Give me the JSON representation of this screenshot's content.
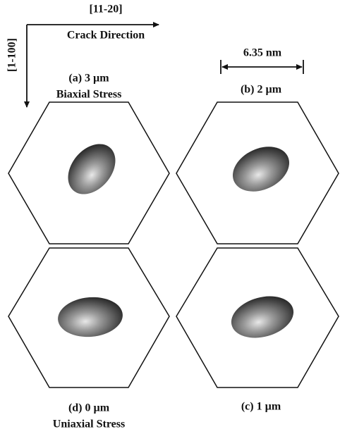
{
  "axes": {
    "horizontal": "[11-20]",
    "horizontal_caption": "Crack Direction",
    "vertical": "[1-100]"
  },
  "scale_bar": "6.35 nm",
  "panels": [
    {
      "label": "(a) 3 µm",
      "caption": "Biaxial Stress"
    },
    {
      "label": "(b) 2 µm"
    },
    {
      "label": "(c) 1 µm"
    },
    {
      "label": "(d) 0 µm",
      "caption": "Uniaxial Stress"
    }
  ]
}
